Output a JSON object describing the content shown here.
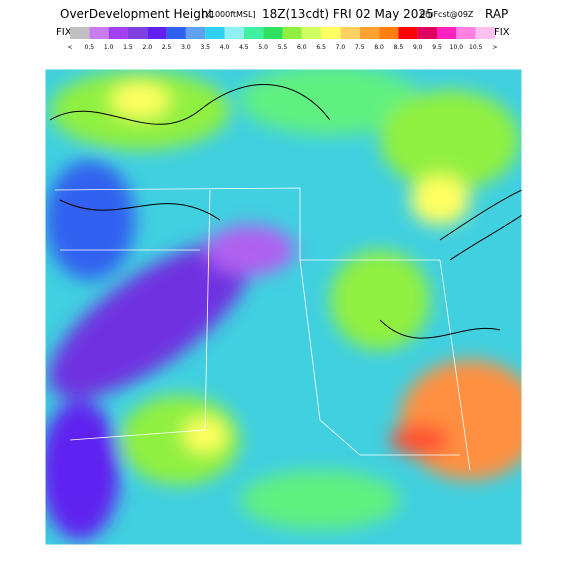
{
  "header": {
    "title": "OverDevelopment Height",
    "units": "[x1000ftMSL]",
    "valid": "18Z(13cdt) FRI 02 May 2025",
    "forecast": "9hrFcst@09Z",
    "model": "RAP"
  },
  "legend": {
    "left": "FIX",
    "right": "FIX",
    "labels": [
      "<",
      "0.5",
      "1.0",
      "1.5",
      "2.0",
      "2.5",
      "3.0",
      "3.5",
      "4.0",
      "4.5",
      "5.0",
      "5.5",
      "6.0",
      "6.5",
      "7.0",
      "7.5",
      "8.0",
      "8.5",
      "9.0",
      "9.5",
      "10.0",
      "10.5",
      ">"
    ],
    "colors": [
      "#c0c0c0",
      "#c87cf0",
      "#a040f0",
      "#8040e0",
      "#6020f0",
      "#3060f0",
      "#60a0f0",
      "#30d0f0",
      "#90f0f0",
      "#40f0a0",
      "#30e060",
      "#90f040",
      "#d0ff60",
      "#ffff60",
      "#ffd060",
      "#ffa030",
      "#ff8010",
      "#ff0000",
      "#e00060",
      "#ff20c0",
      "#ff80e0",
      "#ffc0f0"
    ]
  }
}
